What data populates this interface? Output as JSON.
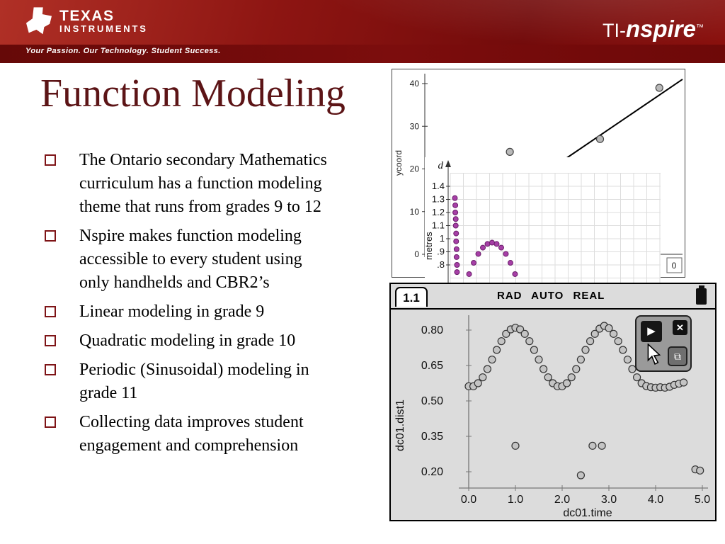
{
  "header": {
    "logo_line1": "TEXAS",
    "logo_line2": "INSTRUMENTS",
    "tagline": "Your Passion. Our Technology. Student Success.",
    "brand_prefix": "TI-",
    "brand_name": "nspire",
    "brand_tm": "™"
  },
  "slide": {
    "title": "Function Modeling",
    "bullets": [
      "The Ontario secondary Mathematics curriculum has a function modeling theme that runs from grades 9 to 12",
      "Nspire makes function modeling accessible to every student using only handhelds and CBR2’s",
      "Linear modeling in grade 9",
      "Quadratic modeling in grade 10",
      "Periodic (Sinusoidal) modeling in grade 11",
      "Collecting data improves student engagement and comprehension"
    ]
  },
  "colors": {
    "header_red": "#8d1512",
    "title_maroon": "#5c1416",
    "bullet_square": "#7e1417",
    "purple_marker": "#a63fa6",
    "gray_marker": "#c4c4c4"
  },
  "nspire_controls": {
    "play": "▶",
    "close": "✕",
    "step": "⧉"
  },
  "chart_data": [
    {
      "id": "linear-scatter",
      "type": "scatter",
      "ylabel": "ycoord",
      "y_ticks": [
        0,
        10,
        20,
        30,
        40
      ],
      "ylim": [
        0,
        45
      ],
      "x_tick_labels_visible": false,
      "x_encoding": "fraction-of-plot-width",
      "points": [
        {
          "x": 0.33,
          "y": 24
        },
        {
          "x": 0.68,
          "y": 27
        },
        {
          "x": 0.91,
          "y": 39
        }
      ],
      "trend_line": {
        "x1": 0.5,
        "y1": 20.5,
        "x2": 1.0,
        "y2": 41
      },
      "corner_cell": "0"
    },
    {
      "id": "bounce-quadratic",
      "type": "scatter",
      "axis_label": "d",
      "side_label": "metres",
      "grid": true,
      "tick_values": [
        1.4,
        1.3,
        1.2,
        1.1,
        1.0,
        0.9,
        0.8
      ],
      "tick_labels": [
        "1.4",
        "1.3",
        "1.2",
        "1.1",
        "1",
        ".9",
        ".8"
      ],
      "x_encoding": "fraction-of-plot-width",
      "points": [
        [
          0.022,
          1.31
        ],
        [
          0.024,
          1.255
        ],
        [
          0.024,
          1.2
        ],
        [
          0.026,
          1.15
        ],
        [
          0.026,
          1.1
        ],
        [
          0.028,
          1.04
        ],
        [
          0.028,
          0.98
        ],
        [
          0.03,
          0.92
        ],
        [
          0.03,
          0.86
        ],
        [
          0.032,
          0.8
        ],
        [
          0.032,
          0.745
        ],
        [
          0.09,
          0.73
        ],
        [
          0.112,
          0.816
        ],
        [
          0.134,
          0.884
        ],
        [
          0.156,
          0.932
        ],
        [
          0.178,
          0.96
        ],
        [
          0.2,
          0.97
        ],
        [
          0.222,
          0.96
        ],
        [
          0.244,
          0.932
        ],
        [
          0.266,
          0.884
        ],
        [
          0.288,
          0.816
        ],
        [
          0.31,
          0.73
        ]
      ]
    },
    {
      "id": "nspire-periodic",
      "type": "scatter",
      "header": {
        "tab": "1.1",
        "status": "RAD AUTO REAL"
      },
      "xlabel": "dc01.time",
      "ylabel": "dc01.dist1",
      "x_ticks": [
        "0.0",
        "1.0",
        "2.0",
        "3.0",
        "4.0",
        "5.0"
      ],
      "y_ticks": [
        "0.80",
        "0.65",
        "0.50",
        "0.35",
        "0.20"
      ],
      "xlim": [
        -0.7,
        5.25
      ],
      "ylim": [
        0.12,
        0.9
      ],
      "wave_points": [
        [
          0.0,
          0.562
        ],
        [
          0.1,
          0.562
        ],
        [
          0.2,
          0.575
        ],
        [
          0.3,
          0.6
        ],
        [
          0.4,
          0.635
        ],
        [
          0.5,
          0.675
        ],
        [
          0.6,
          0.716
        ],
        [
          0.7,
          0.753
        ],
        [
          0.8,
          0.784
        ],
        [
          0.9,
          0.803
        ],
        [
          1.0,
          0.81
        ],
        [
          1.1,
          0.803
        ],
        [
          1.2,
          0.784
        ],
        [
          1.3,
          0.753
        ],
        [
          1.4,
          0.716
        ],
        [
          1.5,
          0.675
        ],
        [
          1.6,
          0.635
        ],
        [
          1.7,
          0.6
        ],
        [
          1.8,
          0.575
        ],
        [
          1.9,
          0.562
        ],
        [
          2.0,
          0.562
        ],
        [
          2.1,
          0.575
        ],
        [
          2.2,
          0.6
        ],
        [
          2.3,
          0.635
        ],
        [
          2.4,
          0.675
        ],
        [
          2.5,
          0.716
        ],
        [
          2.6,
          0.753
        ],
        [
          2.7,
          0.784
        ],
        [
          2.8,
          0.806
        ],
        [
          2.9,
          0.818
        ],
        [
          3.0,
          0.808
        ],
        [
          3.1,
          0.784
        ],
        [
          3.2,
          0.753
        ],
        [
          3.3,
          0.716
        ],
        [
          3.4,
          0.675
        ],
        [
          3.5,
          0.635
        ],
        [
          3.6,
          0.6
        ],
        [
          3.7,
          0.575
        ],
        [
          3.8,
          0.563
        ],
        [
          3.9,
          0.558
        ],
        [
          4.0,
          0.556
        ],
        [
          4.1,
          0.558
        ],
        [
          4.2,
          0.556
        ],
        [
          4.3,
          0.56
        ],
        [
          4.4,
          0.568
        ],
        [
          4.5,
          0.573
        ],
        [
          4.6,
          0.578
        ]
      ],
      "outlier_points": [
        [
          1.0,
          0.31
        ],
        [
          2.4,
          0.185
        ],
        [
          2.65,
          0.31
        ],
        [
          2.85,
          0.31
        ],
        [
          4.85,
          0.21
        ],
        [
          4.95,
          0.205
        ]
      ]
    }
  ]
}
